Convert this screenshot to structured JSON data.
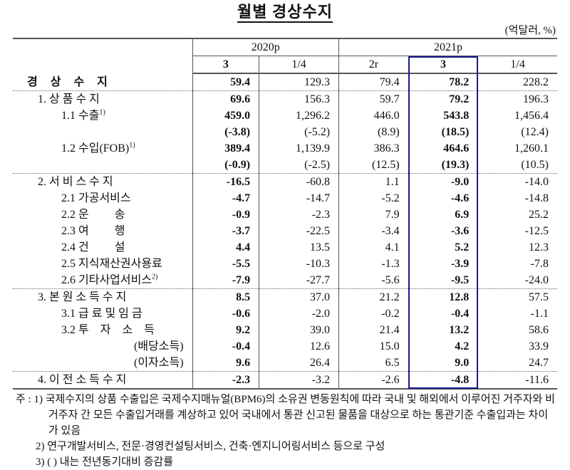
{
  "title": "월별 경상수지",
  "unit": "(억달러, %)",
  "header": {
    "years": [
      "2020p",
      "2021p"
    ],
    "months": [
      "3",
      "1/4",
      "2r",
      "3",
      "1/4"
    ]
  },
  "highlight_color": "#1a1a8c",
  "rows": [
    {
      "label": "경 상 수 지",
      "values": [
        "59.4",
        "129.3",
        "79.4",
        "78.2",
        "228.2"
      ]
    },
    {
      "label": "1. 상 품 수 지",
      "values": [
        "69.6",
        "156.3",
        "59.7",
        "79.2",
        "196.3"
      ]
    },
    {
      "label": "1.1 수출",
      "sup": "1)",
      "values": [
        "459.0",
        "1,296.2",
        "446.0",
        "543.8",
        "1,456.4"
      ]
    },
    {
      "label": "",
      "values": [
        "(-3.8)",
        "(-5.2)",
        "(8.9)",
        "(18.5)",
        "(12.4)"
      ]
    },
    {
      "label": "1.2 수입(FOB)",
      "sup": "1)",
      "values": [
        "389.4",
        "1,139.9",
        "386.3",
        "464.6",
        "1,260.1"
      ]
    },
    {
      "label": "",
      "values": [
        "(-0.9)",
        "(-2.5)",
        "(12.5)",
        "(19.3)",
        "(10.5)"
      ]
    },
    {
      "label": "2. 서 비 스 수 지",
      "values": [
        "-16.5",
        "-60.8",
        "1.1",
        "-9.0",
        "-14.0"
      ]
    },
    {
      "label": "2.1 가공서비스",
      "values": [
        "-4.7",
        "-14.7",
        "-5.2",
        "-4.6",
        "-14.8"
      ]
    },
    {
      "label": "2.2 운　　 송",
      "values": [
        "-0.9",
        "-2.3",
        "7.9",
        "6.9",
        "25.2"
      ]
    },
    {
      "label": "2.3 여　　 행",
      "values": [
        "-3.7",
        "-22.5",
        "-3.4",
        "-3.6",
        "-12.5"
      ]
    },
    {
      "label": "2.4 건　　 설",
      "values": [
        "4.4",
        "13.5",
        "4.1",
        "5.2",
        "12.3"
      ]
    },
    {
      "label": "2.5 지식재산권사용료",
      "values": [
        "-5.5",
        "-10.3",
        "-1.3",
        "-3.9",
        "-7.8"
      ]
    },
    {
      "label": "2.6 기타사업서비스",
      "sup": "2)",
      "values": [
        "-7.9",
        "-27.7",
        "-5.6",
        "-9.5",
        "-24.0"
      ]
    },
    {
      "label": "3. 본 원 소 득 수 지",
      "values": [
        "8.5",
        "37.0",
        "21.2",
        "12.8",
        "57.5"
      ]
    },
    {
      "label": "3.1 급 료 및 임 금",
      "values": [
        "-0.6",
        "-2.0",
        "-0.2",
        "-0.4",
        "-1.1"
      ]
    },
    {
      "label": "3.2 투　자　소　득",
      "values": [
        "9.2",
        "39.0",
        "21.4",
        "13.2",
        "58.6"
      ]
    },
    {
      "label": "(배당소득)",
      "values": [
        "-0.4",
        "12.6",
        "15.0",
        "4.2",
        "33.9"
      ]
    },
    {
      "label": "(이자소득)",
      "values": [
        "9.6",
        "26.4",
        "6.5",
        "9.0",
        "24.7"
      ]
    },
    {
      "label": "4. 이 전 소 득 수 지",
      "values": [
        "-2.3",
        "-3.2",
        "-2.6",
        "-4.8",
        "-11.6"
      ]
    }
  ],
  "notes": {
    "prefix": "주 : ",
    "n1a": "1) 국제수지의 상품 수출입은 국제수지매뉴얼(BPM6)의 소유권 변동원칙에 따라 국내 및 해외에서",
    "n1b": "이루어진 거주자와 비거주자 간 모든 수출입거래를 계상하고 있어 국내에서 통관 신고된 물품을",
    "n1c": "대상으로 하는 통관기준 수출입과는 차이가 있음",
    "n2": "2) 연구개발서비스, 전문·경영컨설팅서비스, 건축·엔지니어링서비스 등으로 구성",
    "n3": "3) (   ) 내는 전년동기대비 증감률"
  }
}
